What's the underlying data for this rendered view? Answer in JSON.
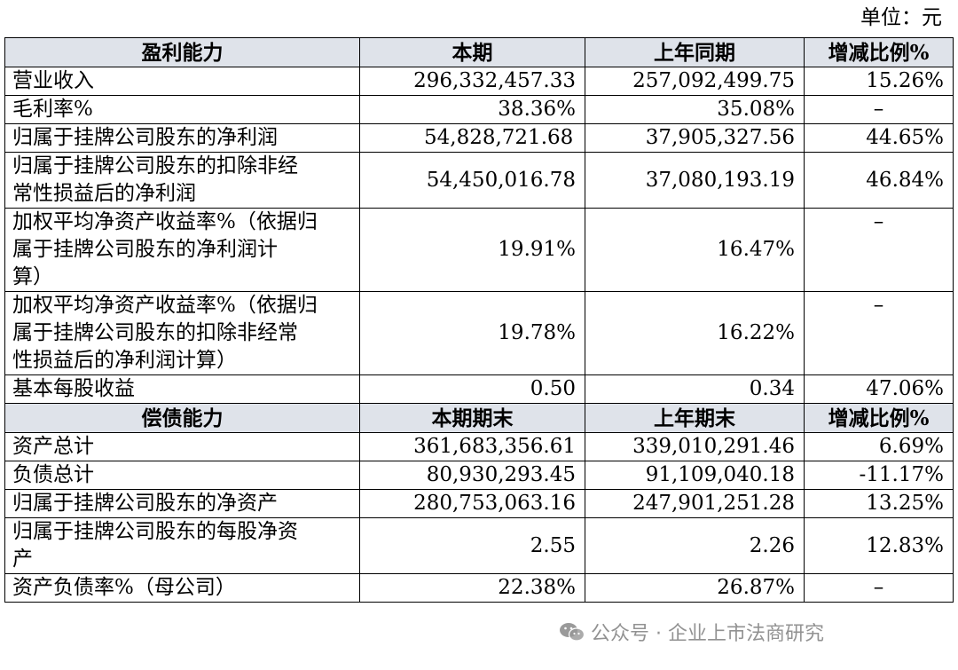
{
  "unit": "单位：元",
  "profit": {
    "header": [
      "盈利能力",
      "本期",
      "上年同期",
      "增减比例%"
    ],
    "rows": [
      {
        "label": "营业收入",
        "current": "296,332,457.33",
        "prior": "257,092,499.75",
        "change": "15.26%"
      },
      {
        "label": "毛利率%",
        "current": "38.36%",
        "prior": "35.08%",
        "change": "–"
      },
      {
        "label": "归属于挂牌公司股东的净利润",
        "current": "54,828,721.68",
        "prior": "37,905,327.56",
        "change": "44.65%"
      },
      {
        "label_lines": [
          "归属于挂牌公司股东的扣除非经",
          "常性损益后的净利润"
        ],
        "current": "54,450,016.78",
        "prior": "37,080,193.19",
        "change": "46.84%"
      },
      {
        "label_lines": [
          "加权平均净资产收益率%（依据归",
          "属于挂牌公司股东的净利润计",
          "算）"
        ],
        "current": "19.91%",
        "prior": "16.47%",
        "change": "–"
      },
      {
        "label_lines": [
          "加权平均净资产收益率%（依据归",
          "属于挂牌公司股东的扣除非经常",
          "性损益后的净利润计算）"
        ],
        "current": "19.78%",
        "prior": "16.22%",
        "change": "–"
      },
      {
        "label": "基本每股收益",
        "current": "0.50",
        "prior": "0.34",
        "change": "47.06%"
      }
    ]
  },
  "solvency": {
    "header": [
      "偿债能力",
      "本期期末",
      "上年期末",
      "增减比例%"
    ],
    "rows": [
      {
        "label": "资产总计",
        "current": "361,683,356.61",
        "prior": "339,010,291.46",
        "change": "6.69%"
      },
      {
        "label": "负债总计",
        "current": "80,930,293.45",
        "prior": "91,109,040.18",
        "change": "-11.17%"
      },
      {
        "label": "归属于挂牌公司股东的净资产",
        "current": "280,753,063.16",
        "prior": "247,901,251.28",
        "change": "13.25%"
      },
      {
        "label_lines": [
          "归属于挂牌公司股东的每股净资",
          "产"
        ],
        "current": "2.55",
        "prior": "2.26",
        "change": "12.83%"
      },
      {
        "label": "资产负债率%（母公司）",
        "current": "22.38%",
        "prior": "26.87%",
        "change": "–"
      }
    ]
  },
  "watermark": "公众号 · 企业上市法商研究"
}
